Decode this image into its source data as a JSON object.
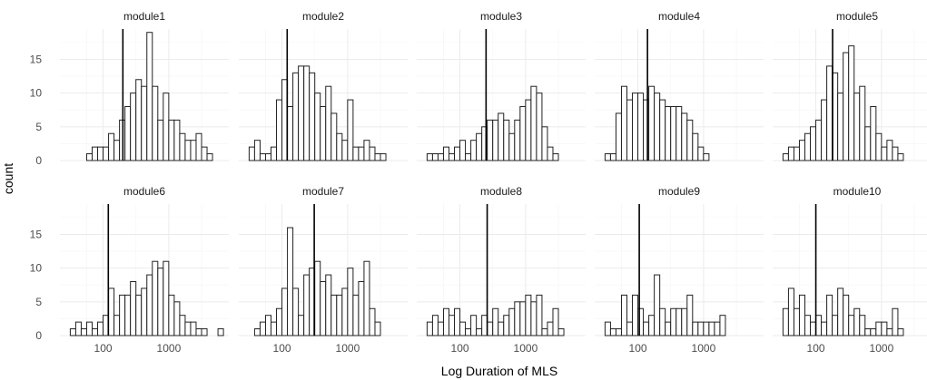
{
  "chart_data": {
    "type": "bar",
    "subtype": "histogram-facet",
    "xlabel": "Log Duration of MLS",
    "ylabel": "count",
    "x_scale": "log10",
    "xlim": [
      22,
      8200
    ],
    "ylim": [
      0,
      19.5
    ],
    "x_ticks": [
      100,
      1000
    ],
    "x_tick_labels": [
      "100",
      "1000"
    ],
    "y_ticks": [
      0,
      5,
      10,
      15
    ],
    "y_tick_labels": [
      "0",
      "5",
      "10",
      "15"
    ],
    "grid": true,
    "bin_start_log10": 1.5,
    "bin_width_log10": 0.0833,
    "panels": [
      {
        "name": "module1",
        "vline": 200,
        "counts": [
          0,
          0,
          0,
          1,
          2,
          2,
          2,
          4,
          3,
          6,
          8,
          10,
          12,
          11,
          19,
          11,
          6,
          10,
          6,
          6,
          4,
          3,
          3,
          4,
          2,
          1,
          0,
          0
        ]
      },
      {
        "name": "module2",
        "vline": 120,
        "counts": [
          2,
          3,
          1,
          1,
          2,
          9,
          12,
          8,
          13,
          14,
          14,
          13,
          10,
          8,
          11,
          7,
          4,
          3,
          9,
          2,
          2,
          3,
          2,
          1,
          1,
          0,
          0,
          0
        ]
      },
      {
        "name": "module3",
        "vline": 250,
        "counts": [
          1,
          1,
          1,
          2,
          1,
          2,
          3,
          1,
          3,
          4,
          5,
          6,
          6,
          7,
          6,
          4,
          6,
          8,
          9,
          11,
          10,
          5,
          2,
          1,
          0,
          0,
          0,
          0
        ]
      },
      {
        "name": "module4",
        "vline": 140,
        "counts": [
          1,
          1,
          7,
          11,
          9,
          10,
          10,
          9,
          11,
          10,
          9,
          8,
          8,
          8,
          7,
          6,
          4,
          2,
          1,
          0,
          0,
          0,
          0,
          0,
          0,
          0,
          0,
          0
        ]
      },
      {
        "name": "module5",
        "vline": 180,
        "counts": [
          1,
          2,
          2,
          3,
          4,
          5,
          6,
          9,
          14,
          13,
          10,
          16,
          17,
          10,
          11,
          5,
          8,
          4,
          2,
          3,
          2,
          1,
          0,
          0,
          0,
          0,
          0,
          0
        ]
      }
    ],
    "panels_row2": [
      {
        "name": "module6",
        "vline": 120,
        "counts": [
          1,
          2,
          1,
          2,
          1,
          2,
          3,
          7,
          3,
          6,
          6,
          8,
          6,
          7,
          9,
          11,
          10,
          11,
          6,
          5,
          3,
          2,
          2,
          1,
          1,
          0,
          0,
          1
        ]
      },
      {
        "name": "module7",
        "vline": 310,
        "counts": [
          0,
          1,
          2,
          3,
          2,
          4,
          7,
          16,
          7,
          3,
          9,
          10,
          11,
          8,
          9,
          6,
          6,
          7,
          10,
          6,
          8,
          11,
          4,
          2,
          0,
          0,
          0,
          0
        ]
      },
      {
        "name": "module8",
        "vline": 260,
        "counts": [
          2,
          3,
          2,
          4,
          3,
          4,
          2,
          1,
          3,
          1,
          3,
          2,
          4,
          2,
          3,
          4,
          5,
          5,
          6,
          5,
          6,
          1,
          2,
          4,
          1,
          0,
          0,
          0
        ]
      },
      {
        "name": "module9",
        "vline": 105,
        "counts": [
          2,
          1,
          1,
          6,
          2,
          6,
          4,
          2,
          3,
          9,
          4,
          2,
          4,
          4,
          4,
          6,
          2,
          2,
          2,
          2,
          2,
          3,
          0,
          0,
          0,
          0,
          0,
          0
        ]
      },
      {
        "name": "module10",
        "vline": 100,
        "counts": [
          4,
          7,
          4,
          6,
          3,
          2,
          3,
          2,
          6,
          3,
          7,
          6,
          3,
          4,
          3,
          1,
          1,
          2,
          2,
          1,
          4,
          1,
          0,
          0,
          0,
          0,
          0,
          0
        ]
      }
    ]
  }
}
